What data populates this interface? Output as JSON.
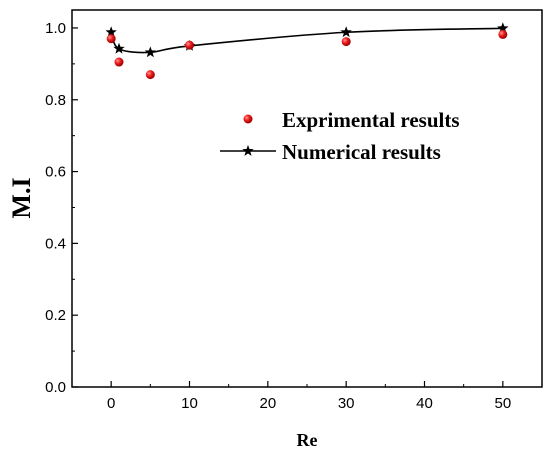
{
  "chart_data": {
    "type": "scatter",
    "xlabel": "Re",
    "ylabel": "M.I",
    "xlim": [
      -5,
      55
    ],
    "ylim": [
      0.0,
      1.05
    ],
    "xticks": [
      0,
      10,
      20,
      30,
      40,
      50
    ],
    "yticks": [
      0.0,
      0.2,
      0.4,
      0.6,
      0.8,
      1.0
    ],
    "xtick_labels": [
      "0",
      "10",
      "20",
      "30",
      "40",
      "50"
    ],
    "ytick_labels": [
      "0.0",
      "0.2",
      "0.4",
      "0.6",
      "0.8",
      "1.0"
    ],
    "grid": false,
    "legend_position": "center-right",
    "series": [
      {
        "name": "Exprimental results",
        "kind": "scatter",
        "marker": "circle",
        "color": "#e01010",
        "x": [
          0,
          1,
          5,
          10,
          30,
          50
        ],
        "y": [
          0.97,
          0.905,
          0.87,
          0.952,
          0.962,
          0.982
        ]
      },
      {
        "name": "Numerical results",
        "kind": "line",
        "marker": "star",
        "color": "#000000",
        "x": [
          0,
          1,
          5,
          10,
          30,
          50
        ],
        "y": [
          0.988,
          0.942,
          0.932,
          0.95,
          0.988,
          0.999
        ]
      }
    ]
  }
}
